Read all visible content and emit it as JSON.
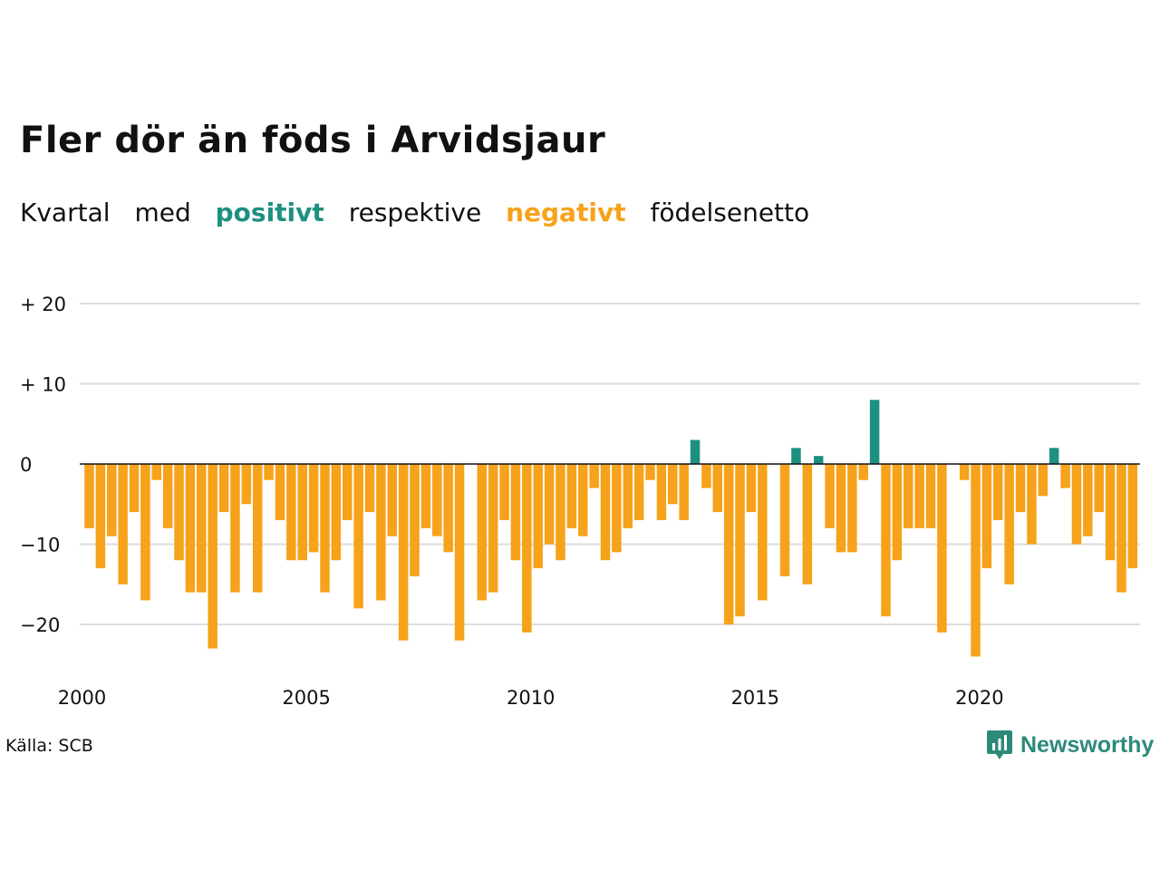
{
  "title": "Fler dör än föds i Arvidsjaur",
  "subtitle": {
    "part1": "Kvartal",
    "part2": "med",
    "positive": "positivt",
    "part3": "respektive",
    "negative": "negativt",
    "part4": "födelsenetto"
  },
  "source": "Källa: SCB",
  "brand": "Newsworthy",
  "colors": {
    "positive": "#1e9080",
    "negative": "#f7a21b",
    "grid": "#dddddd"
  },
  "chart_data": {
    "type": "bar",
    "x_start_year": 2000,
    "quarters_per_year": 4,
    "values": [
      -8,
      -13,
      -9,
      -15,
      -6,
      -17,
      -2,
      -8,
      -12,
      -16,
      -16,
      -23,
      -6,
      -16,
      -5,
      -16,
      -2,
      -7,
      -12,
      -12,
      -11,
      -16,
      -12,
      -7,
      -18,
      -6,
      -17,
      -9,
      -22,
      -14,
      -8,
      -9,
      -11,
      -22,
      0,
      -17,
      -16,
      -7,
      -12,
      -21,
      -13,
      -10,
      -12,
      -8,
      -9,
      -3,
      -12,
      -11,
      -8,
      -7,
      -2,
      -7,
      -5,
      -7,
      3,
      -3,
      -6,
      -20,
      -19,
      -6,
      -17,
      0,
      -14,
      2,
      -15,
      1,
      -8,
      -11,
      -11,
      -2,
      8,
      -19,
      -12,
      -8,
      -8,
      -8,
      -21,
      0,
      -2,
      -24,
      -13,
      -7,
      -15,
      -6,
      -10,
      -4,
      2,
      -3,
      -10,
      -9,
      -6,
      -12,
      -16,
      -13
    ],
    "x_ticks": [
      2000,
      2005,
      2010,
      2015,
      2020
    ],
    "y_ticks": [
      20,
      10,
      0,
      -10,
      -20
    ],
    "y_tick_labels": [
      "+ 20",
      "+ 10",
      "0",
      "−10",
      "−20"
    ],
    "ylim": [
      -26,
      22
    ],
    "grid": true
  }
}
